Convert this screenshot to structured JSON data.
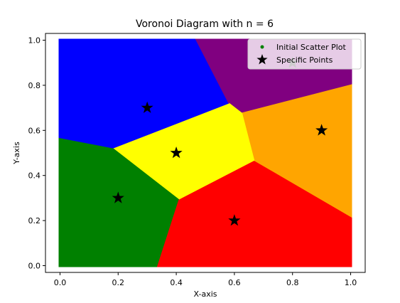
{
  "chart_data": {
    "type": "scatter",
    "title": "Voronoi Diagram with n = 6",
    "xlabel": "X-axis",
    "ylabel": "Y-axis",
    "xlim": [
      -0.05,
      1.05
    ],
    "ylim": [
      -0.03,
      1.03
    ],
    "xticks": [
      "0.0",
      "0.2",
      "0.4",
      "0.6",
      "0.8",
      "1.0"
    ],
    "yticks": [
      "0.0",
      "0.2",
      "0.4",
      "0.6",
      "0.8",
      "1.0"
    ],
    "grid": false,
    "legend_placement": "top-right",
    "legend": [
      {
        "label": "Initial Scatter Plot",
        "marker": "dot",
        "color": "#008000"
      },
      {
        "label": "Specific Points",
        "marker": "star",
        "color": "#000000"
      }
    ],
    "specific_points": [
      {
        "x": 0.3,
        "y": 0.7,
        "color": "#0000ff"
      },
      {
        "x": 0.8,
        "y": 0.9,
        "color": "#800080"
      },
      {
        "x": 0.9,
        "y": 0.6,
        "color": "#ffa500"
      },
      {
        "x": 0.4,
        "y": 0.5,
        "color": "#ffff00"
      },
      {
        "x": 0.2,
        "y": 0.3,
        "color": "#008000"
      },
      {
        "x": 0.6,
        "y": 0.2,
        "color": "#ff0000"
      }
    ],
    "scatter_domain": {
      "x": [
        0,
        1
      ],
      "y": [
        0,
        1
      ]
    }
  }
}
